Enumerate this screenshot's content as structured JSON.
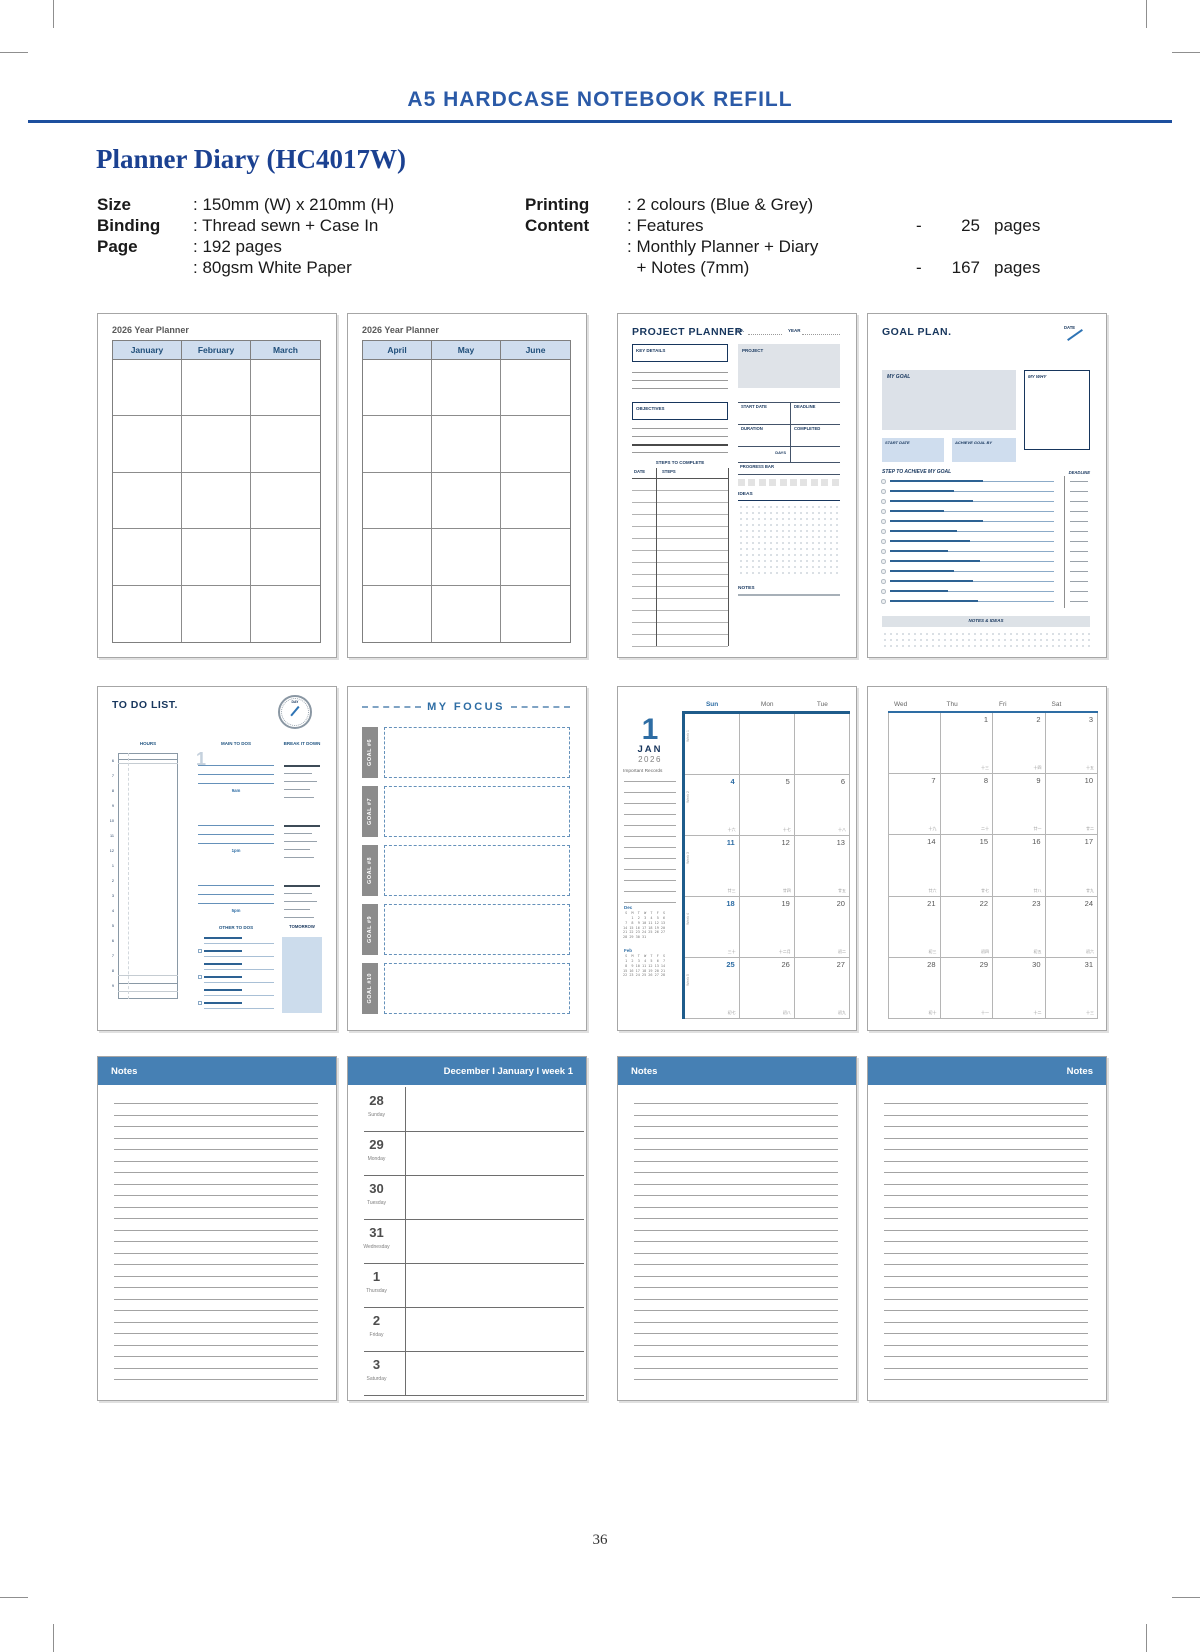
{
  "header": {
    "title": "A5 HARDCASE NOTEBOOK REFILL"
  },
  "product": {
    "title": "Planner Diary (HC4017W)",
    "specs_left": [
      {
        "label": "Size",
        "value": ": 150mm (W) x 210mm (H)"
      },
      {
        "label": "Binding",
        "value": ": Thread sewn + Case In"
      },
      {
        "label": "Page",
        "value": ": 192 pages"
      },
      {
        "label": "",
        "value": ": 80gsm White Paper"
      }
    ],
    "specs_right": [
      {
        "label": "Printing",
        "value": ": 2 colours (Blue & Grey)",
        "dash": "",
        "count": "",
        "unit": ""
      },
      {
        "label": "Content",
        "value": ": Features",
        "dash": "-",
        "count": "25",
        "unit": "pages"
      },
      {
        "label": "",
        "value": ": Monthly Planner + Diary",
        "dash": "",
        "count": "",
        "unit": ""
      },
      {
        "label": "",
        "value": "  + Notes (7mm)",
        "dash": "-",
        "count": "167",
        "unit": "pages"
      }
    ]
  },
  "year_planner": {
    "title": "2026 Year Planner",
    "left_months": [
      "January",
      "February",
      "March"
    ],
    "right_months": [
      "April",
      "May",
      "June"
    ],
    "body_rows": 5
  },
  "project_planner": {
    "title": "PROJECT PLANNER",
    "no_label": "NO.",
    "year_label": "YEAR",
    "key_details": "KEY DETAILS",
    "objectives": "OBJECTIVES",
    "steps_title": "STEPS TO COMPLETE",
    "date_label": "DATE",
    "steps_label": "STEPS",
    "project_label": "PROJECT",
    "start_date": "START DATE",
    "deadline": "DEADLINE",
    "duration": "DURATION",
    "completed": "COMPLETED",
    "days_label": "DAYS",
    "progress_label": "PROGRESS BAR",
    "ideas_label": "IDEAS",
    "notes_label": "NOTES"
  },
  "goal_plan": {
    "title": "GOAL PLAN.",
    "date_label": "DATE",
    "my_goal": "MY GOAL",
    "my_why": "MY WHY",
    "start_date": "START DATE",
    "achieve_by": "ACHIEVE GOAL BY",
    "steps_title": "STEP TO ACHIEVE MY GOAL",
    "deadline": "DEADLINE",
    "notes_ideas": "NOTES & IDEAS",
    "step_widths": [
      0.58,
      0.4,
      0.52,
      0.34,
      0.58,
      0.42,
      0.5,
      0.36,
      0.56,
      0.4,
      0.52,
      0.36,
      0.55
    ]
  },
  "todo": {
    "title": "TO DO LIST.",
    "day_label": "DAY",
    "hours_label": "HOURS",
    "hour_marks": [
      "6",
      "7",
      "8",
      "9",
      "10",
      "11",
      "12",
      "1",
      "2",
      "3",
      "4",
      "5",
      "6",
      "7",
      "8",
      "9"
    ],
    "main_label": "MAIN TO DOS",
    "break_label": "BREAK IT DOWN",
    "ghost_number": "1",
    "time_labels": [
      "9am",
      "1pm",
      "5pm"
    ],
    "other_label": "OTHER TO DOS",
    "tomorrow_label": "TOMORROW"
  },
  "my_focus": {
    "title": "MY FOCUS",
    "goals": [
      "GOAL #6",
      "GOAL #7",
      "GOAL #8",
      "GOAL #9",
      "GOAL #10"
    ]
  },
  "monthly": {
    "day_number": "1",
    "month": "JAN",
    "year": "2026",
    "records_label": "Important Records",
    "mini_months": [
      {
        "name": "Dec",
        "header": " S  M  T  W  T  F  S",
        "rows": [
          "    1  2  3  4  5  6",
          " 7  8  9 10 11 12 13",
          "14 15 16 17 18 19 20",
          "21 22 23 24 25 26 27",
          "28 29 30 31"
        ]
      },
      {
        "name": "Feb",
        "header": " S  M  T  W  T  F  S",
        "rows": [
          " 1  2  3  4  5  6  7",
          " 8  9 10 11 12 13 14",
          "15 16 17 18 19 20 21",
          "22 23 24 25 26 27 28"
        ]
      }
    ],
    "left_days": [
      "Sun",
      "Mon",
      "Tue"
    ],
    "right_days": [
      "Wed",
      "Thu",
      "Fri",
      "Sat"
    ],
    "week_labels": [
      "Week 1",
      "Week 2",
      "Week 3",
      "Week 4",
      "Week 5"
    ],
    "left_weeks": [
      [
        "",
        "",
        ""
      ],
      [
        "4",
        "5",
        "6"
      ],
      [
        "11",
        "12",
        "13"
      ],
      [
        "18",
        "19",
        "20"
      ],
      [
        "25",
        "26",
        "27"
      ]
    ],
    "right_weeks": [
      [
        "",
        "1",
        "2",
        "3"
      ],
      [
        "7",
        "8",
        "9",
        "10"
      ],
      [
        "14",
        "15",
        "16",
        "17"
      ],
      [
        "21",
        "22",
        "23",
        "24"
      ],
      [
        "28",
        "29",
        "30",
        "31"
      ]
    ],
    "left_subs": [
      [
        "",
        "",
        ""
      ],
      [
        "十六",
        "十七",
        "十八"
      ],
      [
        "廿三",
        "廿四",
        "廿五"
      ],
      [
        "三十",
        "十二月",
        "初二"
      ],
      [
        "初七",
        "初八",
        "初九"
      ]
    ],
    "right_subs": [
      [
        "",
        "十三",
        "十四",
        "十五"
      ],
      [
        "十九",
        "二十",
        "廿一",
        "廿二"
      ],
      [
        "廿六",
        "廿七",
        "廿八",
        "廿九"
      ],
      [
        "初三",
        "初四",
        "初五",
        "初六"
      ],
      [
        "初十",
        "十一",
        "十二",
        "十三"
      ]
    ]
  },
  "weekly": {
    "header": "December I January I week 1",
    "days": [
      {
        "num": "28",
        "name": "Sunday"
      },
      {
        "num": "29",
        "name": "Monday"
      },
      {
        "num": "30",
        "name": "Tuesday"
      },
      {
        "num": "31",
        "name": "Wednesday"
      },
      {
        "num": "1",
        "name": "Thursday"
      },
      {
        "num": "2",
        "name": "Friday"
      },
      {
        "num": "3",
        "name": "Saturday"
      }
    ]
  },
  "notes": {
    "label": "Notes"
  },
  "page_number": "36",
  "colors": {
    "accent_blue": "#2b5aa7",
    "navy": "#17365d",
    "steel_bar": "#4680b4",
    "light_blue": "#cfddee",
    "rule_navy": "#1d4f9e",
    "grid_blue": "#1f5c8b"
  }
}
